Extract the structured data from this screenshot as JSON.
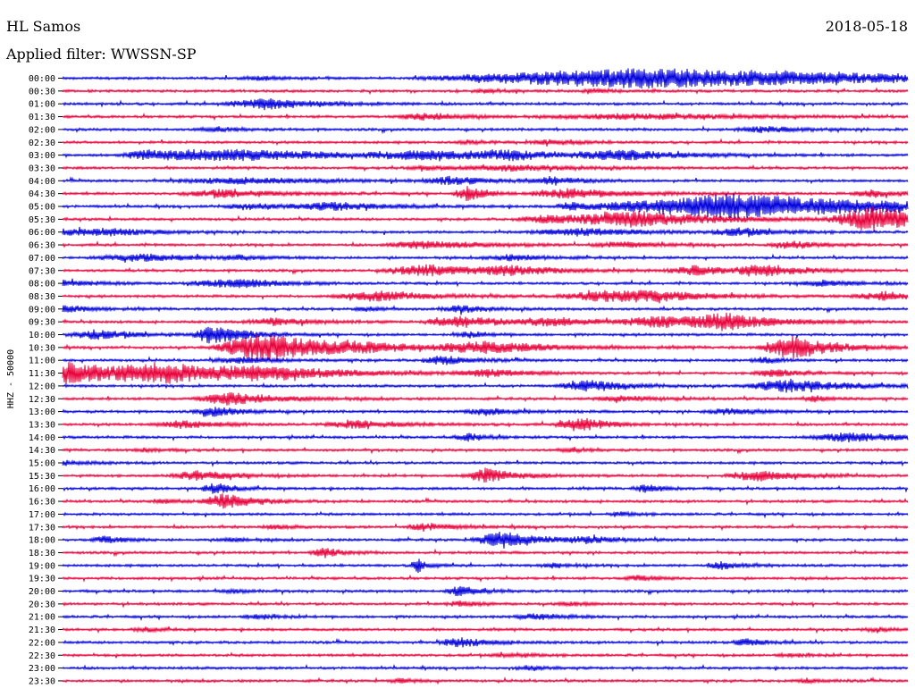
{
  "header": {
    "station": "HL Samos",
    "date": "2018-05-18",
    "filter": "Applied filter: WWSSN-SP"
  },
  "chart_data": {
    "type": "line",
    "title": "HL Samos",
    "subtitle": "Applied filter: WWSSN-SP",
    "date": "2018-05-18",
    "ylabel": "HHZ - 50000",
    "grid": false,
    "series_colors": [
      "#0000dc",
      "#e8003a"
    ],
    "rows": [
      "00:00",
      "00:30",
      "01:00",
      "01:30",
      "02:00",
      "02:30",
      "03:00",
      "03:30",
      "04:00",
      "04:30",
      "05:00",
      "05:30",
      "06:00",
      "06:30",
      "07:00",
      "07:30",
      "08:00",
      "08:30",
      "09:00",
      "09:30",
      "10:00",
      "10:30",
      "11:00",
      "11:30",
      "12:00",
      "12:30",
      "13:00",
      "13:30",
      "14:00",
      "14:30",
      "15:00",
      "15:30",
      "16:00",
      "16:30",
      "17:00",
      "17:30",
      "18:00",
      "18:30",
      "19:00",
      "19:30",
      "20:00",
      "20:30",
      "21:00",
      "21:30",
      "22:00",
      "22:30",
      "23:00",
      "23:30"
    ],
    "bursts": [
      [
        [
          0.685,
          11,
          28
        ],
        [
          0.235,
          2,
          3
        ]
      ],
      [
        [
          0.5,
          2,
          2
        ],
        [
          0.63,
          2,
          2
        ]
      ],
      [
        [
          0.25,
          3,
          3
        ],
        [
          0.234,
          4,
          6
        ]
      ],
      [
        [
          0.68,
          3,
          12
        ],
        [
          0.43,
          4,
          4
        ]
      ],
      [
        [
          0.83,
          3,
          4
        ],
        [
          0.18,
          2,
          3
        ]
      ],
      [
        [
          0.58,
          3,
          3
        ],
        [
          0.48,
          2,
          2
        ]
      ],
      [
        [
          0.19,
          6,
          14
        ],
        [
          0.43,
          4,
          8
        ],
        [
          0.53,
          4,
          4
        ],
        [
          0.66,
          5,
          6
        ],
        [
          0.1,
          3,
          3
        ]
      ],
      [
        [
          0.53,
          3,
          7
        ],
        [
          0.43,
          2,
          3
        ]
      ],
      [
        [
          0.21,
          3,
          10
        ],
        [
          0.46,
          4,
          4
        ],
        [
          0.58,
          4,
          3
        ]
      ],
      [
        [
          0.19,
          4,
          6
        ],
        [
          0.48,
          8,
          2
        ],
        [
          0.6,
          5,
          6
        ],
        [
          0.96,
          4,
          3
        ]
      ],
      [
        [
          0.22,
          3,
          4
        ],
        [
          0.32,
          4,
          6
        ],
        [
          0.79,
          14,
          18
        ],
        [
          0.6,
          5,
          2
        ]
      ],
      [
        [
          0.58,
          5,
          5
        ],
        [
          0.68,
          8,
          8
        ],
        [
          0.96,
          14,
          6
        ]
      ],
      [
        [
          0.06,
          3,
          5
        ],
        [
          0.61,
          4,
          7
        ],
        [
          0.8,
          4,
          4
        ],
        [
          0.0,
          4,
          3
        ]
      ],
      [
        [
          0.43,
          4,
          6
        ],
        [
          0.66,
          3,
          4
        ],
        [
          0.86,
          4,
          3
        ]
      ],
      [
        [
          0.09,
          4,
          6
        ],
        [
          0.53,
          3,
          4
        ],
        [
          0.21,
          2,
          2
        ]
      ],
      [
        [
          0.43,
          6,
          6
        ],
        [
          0.53,
          4,
          5
        ],
        [
          0.75,
          5,
          4
        ],
        [
          0.83,
          6,
          4
        ]
      ],
      [
        [
          0.19,
          4,
          5
        ],
        [
          0.22,
          3,
          2
        ],
        [
          0.9,
          3,
          4
        ],
        [
          0.0,
          3,
          4
        ]
      ],
      [
        [
          0.37,
          5,
          6
        ],
        [
          0.64,
          6,
          6
        ],
        [
          0.7,
          4,
          5
        ],
        [
          0.97,
          5,
          4
        ]
      ],
      [
        [
          0.0,
          4,
          3
        ],
        [
          0.47,
          4,
          3
        ],
        [
          0.36,
          2,
          2
        ]
      ],
      [
        [
          0.25,
          4,
          4
        ],
        [
          0.47,
          6,
          5
        ],
        [
          0.58,
          4,
          5
        ],
        [
          0.71,
          6,
          6
        ],
        [
          0.78,
          8,
          5
        ]
      ],
      [
        [
          0.04,
          5,
          4
        ],
        [
          0.18,
          11,
          3
        ],
        [
          0.48,
          3,
          2
        ]
      ],
      [
        [
          0.24,
          16,
          7
        ],
        [
          0.35,
          3,
          5
        ],
        [
          0.5,
          6,
          7
        ],
        [
          0.86,
          14,
          4
        ]
      ],
      [
        [
          0.21,
          3,
          4
        ],
        [
          0.45,
          5,
          3
        ],
        [
          0.83,
          3,
          2
        ]
      ],
      [
        [
          0.0,
          12,
          10
        ],
        [
          0.12,
          8,
          6
        ],
        [
          0.24,
          6,
          8
        ],
        [
          0.5,
          4,
          4
        ],
        [
          0.84,
          4,
          3
        ]
      ],
      [
        [
          0.62,
          6,
          4
        ],
        [
          0.86,
          7,
          6
        ]
      ],
      [
        [
          0.2,
          7,
          5
        ],
        [
          0.66,
          3,
          4
        ],
        [
          0.89,
          3,
          2
        ]
      ],
      [
        [
          0.18,
          5,
          3
        ],
        [
          0.5,
          4,
          3
        ],
        [
          0.79,
          3,
          4
        ]
      ],
      [
        [
          0.14,
          4,
          4
        ],
        [
          0.35,
          4,
          5
        ],
        [
          0.61,
          8,
          3
        ]
      ],
      [
        [
          0.93,
          5,
          6
        ],
        [
          0.48,
          4,
          2
        ]
      ],
      [
        [
          0.1,
          2,
          2
        ],
        [
          0.6,
          2,
          2
        ]
      ],
      [
        [
          0.0,
          2,
          3
        ]
      ],
      [
        [
          0.16,
          5,
          4
        ],
        [
          0.5,
          8,
          3
        ],
        [
          0.82,
          6,
          4
        ]
      ],
      [
        [
          0.18,
          6,
          2
        ],
        [
          0.69,
          4,
          2
        ]
      ],
      [
        [
          0.19,
          9,
          3
        ],
        [
          0.12,
          2,
          2
        ]
      ],
      [
        [
          0.66,
          2,
          2
        ]
      ],
      [
        [
          0.43,
          4,
          3
        ],
        [
          0.25,
          2,
          2
        ]
      ],
      [
        [
          0.05,
          4,
          2
        ],
        [
          0.52,
          9,
          4
        ],
        [
          0.62,
          3,
          3
        ],
        [
          0.2,
          2,
          2
        ]
      ],
      [
        [
          0.31,
          5,
          2
        ]
      ],
      [
        [
          0.42,
          8,
          1
        ],
        [
          0.78,
          4,
          2
        ],
        [
          0.58,
          3,
          2
        ]
      ],
      [
        [
          0.68,
          3,
          2
        ]
      ],
      [
        [
          0.47,
          6,
          2
        ],
        [
          0.2,
          2,
          2
        ]
      ],
      [
        [
          0.47,
          3,
          2
        ],
        [
          0.6,
          2,
          2
        ]
      ],
      [
        [
          0.23,
          3,
          2
        ],
        [
          0.56,
          3,
          3
        ]
      ],
      [
        [
          0.1,
          2,
          2
        ],
        [
          0.96,
          2,
          2
        ]
      ],
      [
        [
          0.47,
          5,
          3
        ],
        [
          0.81,
          4,
          2
        ]
      ],
      [
        [
          0.53,
          2,
          3
        ],
        [
          0.86,
          2,
          2
        ]
      ],
      [
        [
          0.55,
          2,
          2
        ]
      ],
      [
        [
          0.88,
          2,
          2
        ],
        [
          0.4,
          2,
          2
        ]
      ]
    ]
  }
}
